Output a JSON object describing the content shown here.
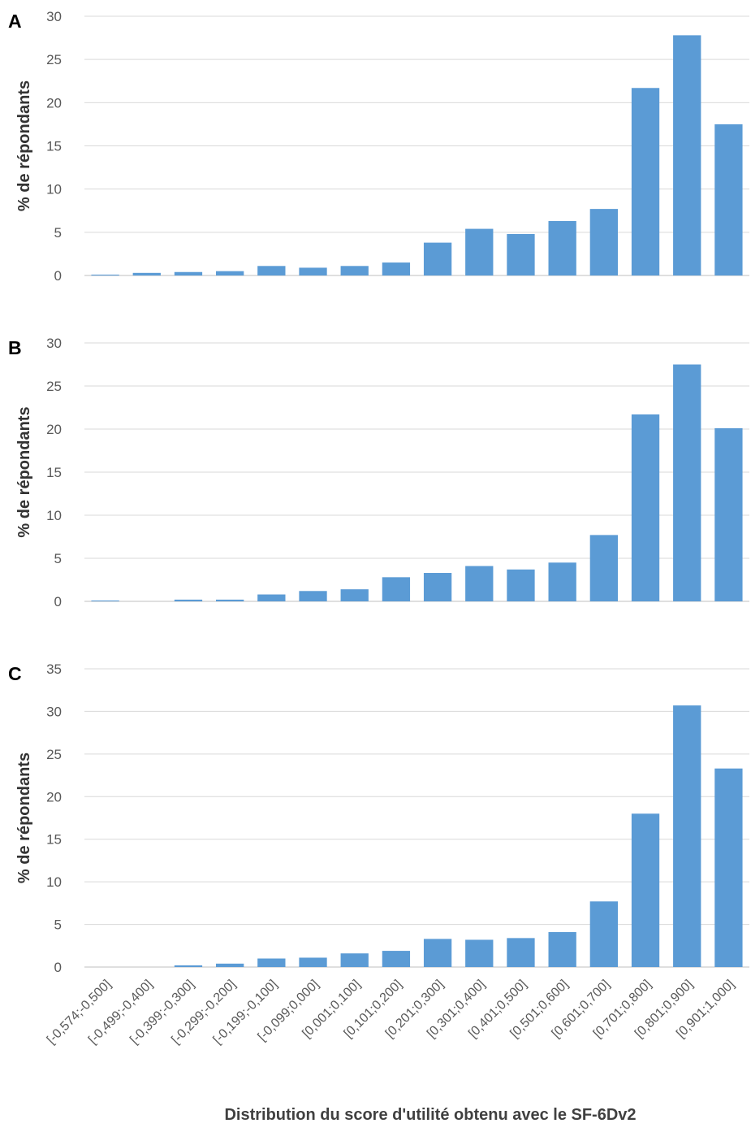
{
  "chart_data": [
    {
      "type": "bar",
      "panel": "A",
      "categories": [
        "[-0,574;-0,500]",
        "[-0,499;-0,400]",
        "[-0,399;-0,300]",
        "[-0,299;-0,200]",
        "[-0,199;-0,100]",
        "[-0,099;0,000]",
        "[0,001;0,100]",
        "[0,101;0,200]",
        "[0,201;0,300]",
        "[0,301;0,400]",
        "[0,401;0,500]",
        "[0,501;0,600]",
        "[0,601;0,700]",
        "[0,701;0,800]",
        "[0,801;0,900]",
        "[0,901;1,000]"
      ],
      "values": [
        0.1,
        0.3,
        0.4,
        0.5,
        1.1,
        0.9,
        1.1,
        1.5,
        3.8,
        5.4,
        4.8,
        6.3,
        7.7,
        21.7,
        27.8,
        17.5
      ],
      "ylabel": "% de répondants",
      "ylim": [
        0,
        30
      ],
      "yticks": [
        0,
        5,
        10,
        15,
        20,
        25,
        30
      ],
      "grid": true,
      "color": "#5B9BD5"
    },
    {
      "type": "bar",
      "panel": "B",
      "categories": [
        "[-0,574;-0,500]",
        "[-0,499;-0,400]",
        "[-0,399;-0,300]",
        "[-0,299;-0,200]",
        "[-0,199;-0,100]",
        "[-0,099;0,000]",
        "[0,001;0,100]",
        "[0,101;0,200]",
        "[0,201;0,300]",
        "[0,301;0,400]",
        "[0,401;0,500]",
        "[0,501;0,600]",
        "[0,601;0,700]",
        "[0,701;0,800]",
        "[0,801;0,900]",
        "[0,901;1,000]"
      ],
      "values": [
        0.1,
        0.0,
        0.2,
        0.2,
        0.8,
        1.2,
        1.4,
        2.8,
        3.3,
        4.1,
        3.7,
        4.5,
        7.7,
        21.7,
        27.5,
        20.1
      ],
      "ylabel": "% de répondants",
      "ylim": [
        0,
        30
      ],
      "yticks": [
        0,
        5,
        10,
        15,
        20,
        25,
        30
      ],
      "grid": true,
      "color": "#5B9BD5"
    },
    {
      "type": "bar",
      "panel": "C",
      "categories": [
        "[-0,574;-0,500]",
        "[-0,499;-0,400]",
        "[-0,399;-0,300]",
        "[-0,299;-0,200]",
        "[-0,199;-0,100]",
        "[-0,099;0,000]",
        "[0,001;0,100]",
        "[0,101;0,200]",
        "[0,201;0,300]",
        "[0,301;0,400]",
        "[0,401;0,500]",
        "[0,501;0,600]",
        "[0,601;0,700]",
        "[0,701;0,800]",
        "[0,801;0,900]",
        "[0,901;1,000]"
      ],
      "values": [
        0.0,
        0.0,
        0.2,
        0.4,
        1.0,
        1.1,
        1.6,
        1.9,
        3.3,
        3.2,
        3.4,
        4.1,
        7.7,
        18.0,
        30.7,
        23.3
      ],
      "ylabel": "% de répondants",
      "ylim": [
        0,
        35
      ],
      "yticks": [
        0,
        5,
        10,
        15,
        20,
        25,
        30,
        35
      ],
      "grid": true,
      "color": "#5B9BD5",
      "xlabel": "Distribution du score d'utilité obtenu avec le SF-6Dv2"
    }
  ]
}
